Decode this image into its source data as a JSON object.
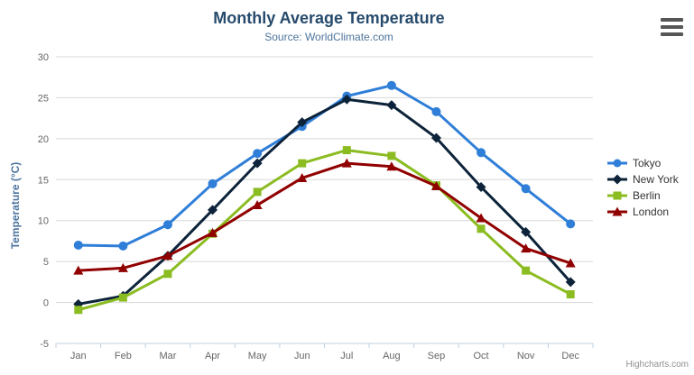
{
  "header": {
    "title": "Monthly Average Temperature",
    "subtitle": "Source: WorldClimate.com"
  },
  "credits": "Highcharts.com",
  "export_menu": {
    "icon": "hamburger-menu-icon"
  },
  "colors": {
    "title": "#274b6d",
    "subtitle": "#4d759e",
    "axis_title": "#4d759e",
    "tick_label": "#666666",
    "gridline": "#d8d8d8",
    "axis_line": "#c0d0e0",
    "legend_text": "#333333",
    "credits_text": "#909090"
  },
  "chart_data": {
    "type": "line",
    "title": "Monthly Average Temperature",
    "subtitle": "Source: WorldClimate.com",
    "xlabel": "",
    "ylabel": "Temperature (°C)",
    "ylim": [
      -5,
      30
    ],
    "yticks": [
      -5,
      0,
      5,
      10,
      15,
      20,
      25,
      30
    ],
    "grid": true,
    "legend_position": "right",
    "categories": [
      "Jan",
      "Feb",
      "Mar",
      "Apr",
      "May",
      "Jun",
      "Jul",
      "Aug",
      "Sep",
      "Oct",
      "Nov",
      "Dec"
    ],
    "series": [
      {
        "name": "Tokyo",
        "color": "#2f7ed8",
        "marker": "circle",
        "values": [
          7.0,
          6.9,
          9.5,
          14.5,
          18.2,
          21.5,
          25.2,
          26.5,
          23.3,
          18.3,
          13.9,
          9.6
        ]
      },
      {
        "name": "New York",
        "color": "#0d233a",
        "marker": "diamond",
        "values": [
          -0.2,
          0.8,
          5.7,
          11.3,
          17.0,
          22.0,
          24.8,
          24.1,
          20.1,
          14.1,
          8.6,
          2.5
        ]
      },
      {
        "name": "Berlin",
        "color": "#8bbc21",
        "marker": "square",
        "values": [
          -0.9,
          0.6,
          3.5,
          8.4,
          13.5,
          17.0,
          18.6,
          17.9,
          14.3,
          9.0,
          3.9,
          1.0
        ]
      },
      {
        "name": "London",
        "color": "#910000",
        "marker": "triangle",
        "values": [
          3.9,
          4.2,
          5.7,
          8.5,
          11.9,
          15.2,
          17.0,
          16.6,
          14.2,
          10.3,
          6.6,
          4.8
        ]
      }
    ]
  }
}
